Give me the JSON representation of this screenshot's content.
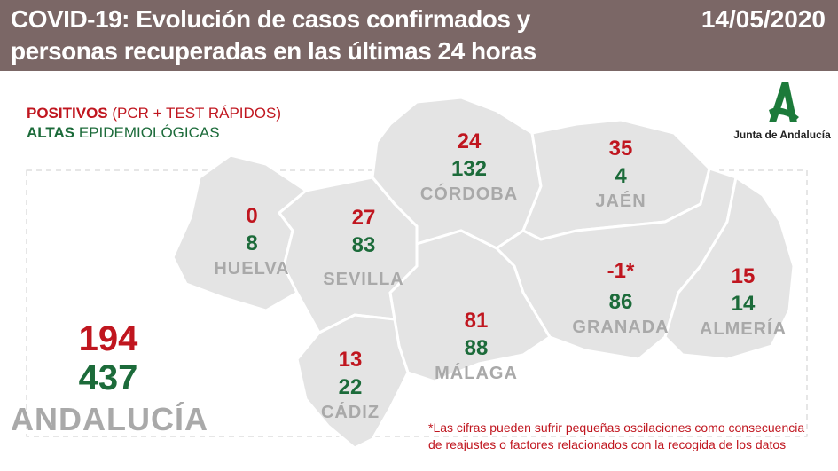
{
  "header": {
    "title_line1": "COVID-19: Evolución de casos confirmados y",
    "title_line2": "personas recuperadas en las últimas 24 horas",
    "date": "14/05/2020"
  },
  "legend": {
    "positivos_bold": "POSITIVOS",
    "positivos_rest": " (PCR + TEST RÁPIDOS)",
    "altas_bold": "ALTAS",
    "altas_rest": " EPIDEMIOLÓGICAS"
  },
  "logo": {
    "text": "Junta de Andalucía"
  },
  "provinces": [
    {
      "name": "HUELVA",
      "positivos": "0",
      "altas": "8"
    },
    {
      "name": "SEVILLA",
      "positivos": "27",
      "altas": "83"
    },
    {
      "name": "CÓRDOBA",
      "positivos": "24",
      "altas": "132"
    },
    {
      "name": "JAÉN",
      "positivos": "35",
      "altas": "4"
    },
    {
      "name": "GRANADA",
      "positivos": "-1*",
      "altas": "86"
    },
    {
      "name": "ALMERÍA",
      "positivos": "15",
      "altas": "14"
    },
    {
      "name": "MÁLAGA",
      "positivos": "81",
      "altas": "88"
    },
    {
      "name": "CÁDIZ",
      "positivos": "13",
      "altas": "22"
    }
  ],
  "total": {
    "name": "ANDALUCÍA",
    "positivos": "194",
    "altas": "437"
  },
  "note": {
    "line1": "*Las cifras pueden sufrir pequeñas oscilaciones como consecuencia",
    "line2": "de reajustes o factores relacionados con la recogida de los datos"
  },
  "colors": {
    "header": "#7b6766",
    "positivos": "#c0161f",
    "altas": "#1c6b3a",
    "map": "#e4e4e4"
  }
}
